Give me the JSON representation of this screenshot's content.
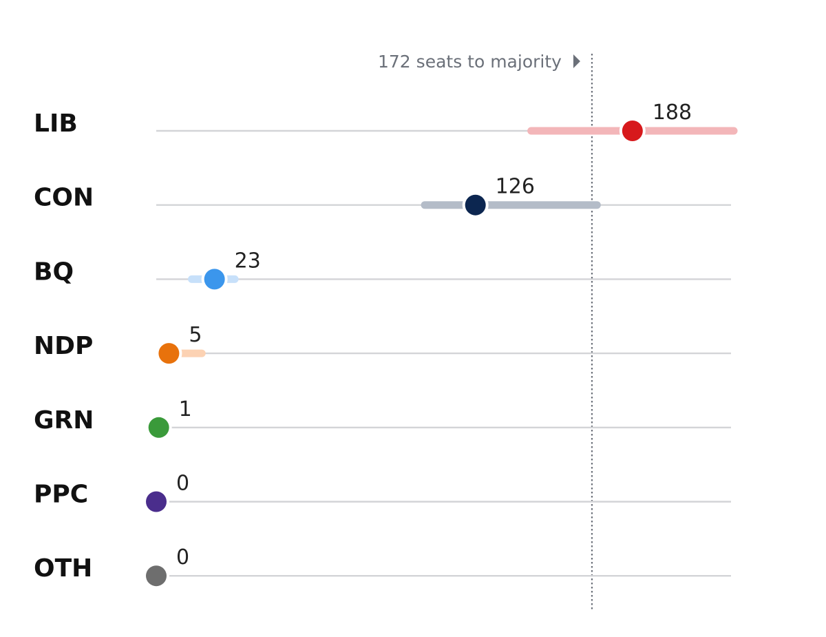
{
  "chart_data": {
    "type": "dot-range",
    "majority": {
      "value": 172,
      "label": "172 seats to majority"
    },
    "xlim": [
      0,
      230
    ],
    "grid": false,
    "legend": "none",
    "rows": [
      {
        "party": "LIB",
        "value": 188,
        "low": 148,
        "high": 228,
        "color": "#d7191c",
        "range_color": "#f3b6b9"
      },
      {
        "party": "CON",
        "value": 126,
        "low": 106,
        "high": 174,
        "color": "#0c2650",
        "range_color": "#b4bcc8"
      },
      {
        "party": "BQ",
        "value": 23,
        "low": 14,
        "high": 31,
        "color": "#3b96ec",
        "range_color": "#c7e0fa"
      },
      {
        "party": "NDP",
        "value": 5,
        "low": 5,
        "high": 18,
        "color": "#e8720c",
        "range_color": "#fcd2b3"
      },
      {
        "party": "GRN",
        "value": 1,
        "low": 1,
        "high": 1,
        "color": "#3a9a3a",
        "range_color": "#c8e6c8"
      },
      {
        "party": "PPC",
        "value": 0,
        "low": 0,
        "high": 0,
        "color": "#4a2d8c",
        "range_color": "#d0c6e6"
      },
      {
        "party": "OTH",
        "value": 0,
        "low": 0,
        "high": 0,
        "color": "#6e6e6e",
        "range_color": "#d6d6d6"
      }
    ]
  },
  "colors": {
    "track": "#d3d4d7",
    "majority_line": "#6b7079",
    "label_text": "#111111",
    "value_text": "#222222"
  }
}
